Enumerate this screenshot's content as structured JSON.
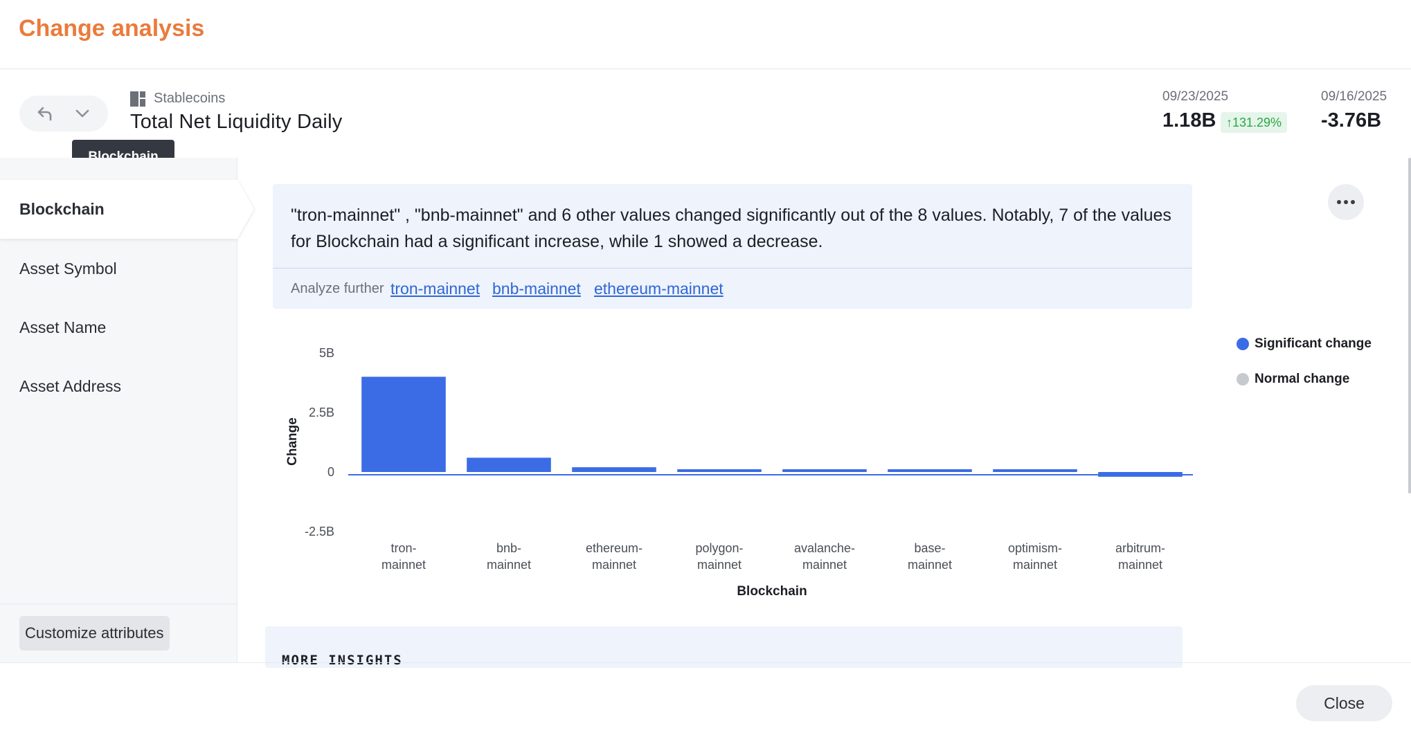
{
  "modal": {
    "title": "Change analysis"
  },
  "nav": {
    "back_icon": "back-arrow-icon",
    "menu_icon": "chevron-down-icon",
    "tooltip": "Blockchain"
  },
  "metric": {
    "breadcrumb": "Stablecoins",
    "breadcrumb_icon": "dashboard-icon",
    "title": "Total Net Liquidity Daily"
  },
  "stats": {
    "current": {
      "date": "09/23/2025",
      "value": "1.18B",
      "change": "↑131.29%"
    },
    "previous": {
      "date": "09/16/2025",
      "value": "-3.76B"
    }
  },
  "sidebar": {
    "items": [
      {
        "label": "Blockchain",
        "active": true
      },
      {
        "label": "Asset Symbol"
      },
      {
        "label": "Asset Name"
      },
      {
        "label": "Asset Address"
      }
    ],
    "customize_label": "Customize attributes"
  },
  "insight": {
    "text": "\"tron-mainnet\" , \"bnb-mainnet\" and 6 other values changed significantly out of the 8 values. Notably, 7 of the values for Blockchain had a significant increase, while 1 showed a decrease.",
    "analyze_label": "Analyze further",
    "links": [
      "tron-mainnet",
      "bnb-mainnet",
      "ethereum-mainnet"
    ]
  },
  "legend": [
    {
      "label": "Significant change",
      "color": "#3b6ce6"
    },
    {
      "label": "Normal change",
      "color": "#c6c9ce"
    }
  ],
  "chart_data": {
    "type": "bar",
    "categories": [
      "tron-mainnet",
      "bnb-mainnet",
      "ethereum-mainnet",
      "polygon-mainnet",
      "avalanche-mainnet",
      "base-mainnet",
      "optimism-mainnet",
      "arbitrum-mainnet"
    ],
    "category_lines": [
      [
        "tron-",
        "mainnet"
      ],
      [
        "bnb-",
        "mainnet"
      ],
      [
        "ethereum-",
        "mainnet"
      ],
      [
        "polygon-",
        "mainnet"
      ],
      [
        "avalanche-",
        "mainnet"
      ],
      [
        "base-",
        "mainnet"
      ],
      [
        "optimism-",
        "mainnet"
      ],
      [
        "arbitrum-",
        "mainnet"
      ]
    ],
    "values": [
      4000000000,
      600000000,
      200000000,
      100000000,
      100000000,
      100000000,
      100000000,
      -200000000
    ],
    "xlabel": "Blockchain",
    "ylabel": "Change",
    "yticks": [
      5000000000,
      2500000000,
      0,
      -2500000000
    ],
    "ytick_labels": [
      "5B",
      "2.5B",
      "0",
      "-2.5B"
    ],
    "ylim": [
      -2500000000,
      5000000000
    ],
    "bar_color": "#3b6ce6",
    "grid": false
  },
  "more_insights": {
    "title": "MORE INSIGHTS"
  },
  "footer": {
    "close_label": "Close"
  }
}
